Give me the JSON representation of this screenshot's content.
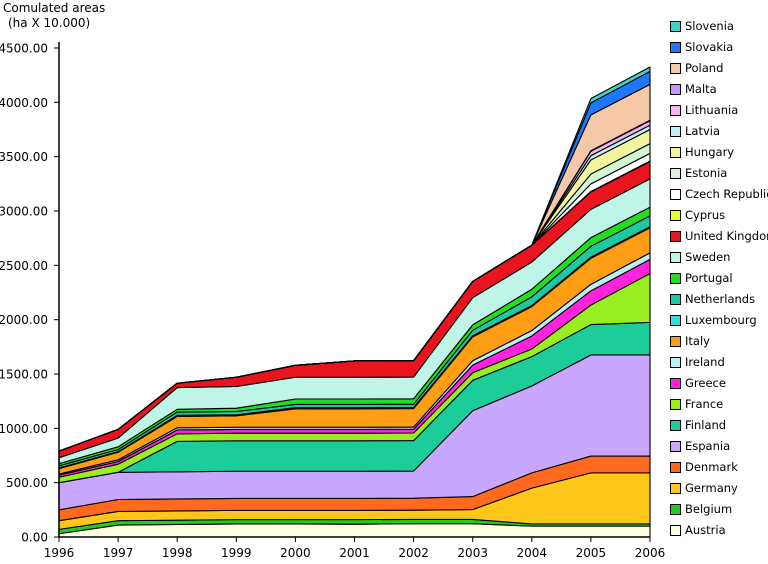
{
  "chart_data": {
    "type": "area",
    "stacked": true,
    "ylabel_line1": "Comulated areas",
    "ylabel_line2": "(ha X 10.000)",
    "xlabel": "",
    "x": [
      "1996",
      "1997",
      "1998",
      "1999",
      "2000",
      "2001",
      "2002",
      "2003",
      "2004",
      "2005",
      "2006"
    ],
    "ylim": [
      0,
      4500
    ],
    "yticks": [
      "0.00",
      "500.00",
      "1000.00",
      "1500.00",
      "2000.00",
      "2500.00",
      "3000.00",
      "3500.00",
      "4000.00",
      "4500.00"
    ],
    "ytick_values": [
      0,
      500,
      1000,
      1500,
      2000,
      2500,
      3000,
      3500,
      4000,
      4500
    ],
    "grid": false,
    "legend_position": "right",
    "series": [
      {
        "name": "Austria",
        "color": "#ffffe0",
        "values": [
          30,
          110,
          115,
          120,
          120,
          118,
          122,
          122,
          100,
          100,
          100
        ]
      },
      {
        "name": "Belgium",
        "color": "#22cc22",
        "values": [
          40,
          40,
          40,
          40,
          40,
          42,
          40,
          40,
          20,
          20,
          20
        ]
      },
      {
        "name": "Germany",
        "color": "#ffc61a",
        "values": [
          80,
          85,
          85,
          85,
          85,
          85,
          85,
          90,
          330,
          470,
          470
        ]
      },
      {
        "name": "Denmark",
        "color": "#ff6a1f",
        "values": [
          100,
          110,
          110,
          110,
          110,
          110,
          110,
          120,
          140,
          155,
          155
        ]
      },
      {
        "name": "Espania",
        "color": "#c8a8ff",
        "values": [
          250,
          250,
          250,
          250,
          250,
          250,
          250,
          790,
          800,
          930,
          930
        ]
      },
      {
        "name": "Finland",
        "color": "#1ccc99",
        "values": [
          0,
          0,
          280,
          280,
          280,
          280,
          280,
          280,
          270,
          280,
          300
        ]
      },
      {
        "name": "France",
        "color": "#99ee22",
        "values": [
          50,
          75,
          70,
          70,
          70,
          70,
          70,
          70,
          70,
          180,
          450
        ]
      },
      {
        "name": "Greece",
        "color": "#ff22dd",
        "values": [
          20,
          25,
          35,
          35,
          35,
          35,
          35,
          70,
          120,
          130,
          130
        ]
      },
      {
        "name": "Ireland",
        "color": "#bbf0f5",
        "values": [
          10,
          15,
          20,
          20,
          20,
          20,
          20,
          40,
          50,
          60,
          60
        ]
      },
      {
        "name": "Italy",
        "color": "#ff9e14",
        "values": [
          50,
          70,
          105,
          105,
          170,
          170,
          170,
          220,
          220,
          240,
          230
        ]
      },
      {
        "name": "Luxembourg",
        "color": "#33dddd",
        "values": [
          5,
          5,
          10,
          10,
          10,
          10,
          10,
          10,
          10,
          10,
          10
        ]
      },
      {
        "name": "Netherlands",
        "color": "#1ec8a0",
        "values": [
          20,
          20,
          30,
          30,
          30,
          30,
          30,
          50,
          80,
          100,
          100
        ]
      },
      {
        "name": "Portugal",
        "color": "#22dd22",
        "values": [
          20,
          25,
          25,
          30,
          50,
          50,
          50,
          50,
          70,
          80,
          80
        ]
      },
      {
        "name": "Sweden",
        "color": "#bff5e6",
        "values": [
          55,
          80,
          200,
          200,
          200,
          200,
          200,
          250,
          250,
          260,
          260
        ]
      },
      {
        "name": "United Kingdom",
        "color": "#e8141e",
        "values": [
          60,
          80,
          40,
          85,
          110,
          150,
          150,
          150,
          155,
          160,
          160
        ]
      },
      {
        "name": "Cyprus",
        "color": "#e6ff26",
        "values": [
          0,
          0,
          0,
          0,
          0,
          0,
          0,
          0,
          0,
          5,
          5
        ]
      },
      {
        "name": "Czech Republic",
        "color": "#ffffff",
        "values": [
          0,
          0,
          0,
          0,
          0,
          0,
          0,
          0,
          0,
          70,
          70
        ]
      },
      {
        "name": "Estonia",
        "color": "#d2f5d2",
        "values": [
          0,
          0,
          0,
          0,
          0,
          0,
          0,
          0,
          0,
          90,
          90
        ]
      },
      {
        "name": "Hungary",
        "color": "#f5f5a0",
        "values": [
          0,
          0,
          0,
          0,
          0,
          0,
          0,
          0,
          0,
          130,
          130
        ]
      },
      {
        "name": "Latvia",
        "color": "#bfeef5",
        "values": [
          0,
          0,
          0,
          0,
          0,
          0,
          0,
          0,
          0,
          40,
          40
        ]
      },
      {
        "name": "Lithuania",
        "color": "#fab4f0",
        "values": [
          0,
          0,
          0,
          0,
          0,
          0,
          0,
          0,
          0,
          40,
          40
        ]
      },
      {
        "name": "Malta",
        "color": "#c896ff",
        "values": [
          0,
          0,
          0,
          0,
          0,
          0,
          0,
          0,
          0,
          5,
          5
        ]
      },
      {
        "name": "Poland",
        "color": "#f5c8a8",
        "values": [
          0,
          0,
          0,
          0,
          0,
          0,
          0,
          0,
          0,
          330,
          330
        ]
      },
      {
        "name": "Slovakia",
        "color": "#1e78ff",
        "values": [
          0,
          0,
          0,
          0,
          0,
          0,
          0,
          0,
          0,
          110,
          120
        ]
      },
      {
        "name": "Slovenia",
        "color": "#3cd6c8",
        "values": [
          0,
          0,
          0,
          0,
          0,
          0,
          0,
          0,
          0,
          40,
          40
        ]
      }
    ]
  }
}
